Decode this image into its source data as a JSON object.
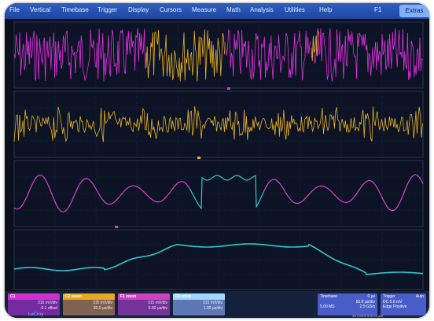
{
  "menu": {
    "items": [
      "File",
      "Vertical",
      "Timebase",
      "Trigger",
      "Display",
      "Cursors",
      "Measure",
      "Math",
      "Analysis",
      "Utilities",
      "Help"
    ],
    "channel_indicator": "F1",
    "extras": "Extras"
  },
  "colors": {
    "ch1": "#e030e0",
    "ch2": "#e8b020",
    "ch3": "#e040d0",
    "ch4": "#30c8d0",
    "grid": "#2a3450",
    "background": "#0a101c"
  },
  "traces": [
    {
      "name": "C1",
      "color": "#e030e0"
    },
    {
      "name": "C2",
      "color": "#e8b020"
    },
    {
      "name": "F1",
      "color": "#e040d0"
    },
    {
      "name": "F2",
      "color": "#30c8d0"
    }
  ],
  "descriptors": [
    {
      "label": "C1",
      "extra": "",
      "line1": "315 mV/div",
      "line2": "-0.1 offset",
      "color": "#d030d0"
    },
    {
      "label": "C2",
      "extra": "zoom",
      "line1": "315 mV/div",
      "line2": "20.0 µs/div",
      "color": "#e8a820"
    },
    {
      "label": "F1",
      "extra": "zoom",
      "line1": "315 mV/div",
      "line2": "5.00 µs/div",
      "color": "#d040c0"
    },
    {
      "label": "F2",
      "extra": "zoom",
      "line1": "315 mV/div",
      "line2": "1.00 µs/div",
      "color": "#9fd8ff"
    }
  ],
  "timebase": {
    "title": "Timebase",
    "value": "0 µs",
    "line1": "50.0 µs/div",
    "line2a": "5.00 MS",
    "line2b": "2.5 GS/s"
  },
  "trigger": {
    "title": "Trigger",
    "mode": "Auto",
    "line1": "DC 0.0 mV",
    "line2": "Edge Positive"
  },
  "stamp": "3/17/2009 9:30:10 AM",
  "brand": "LeCroy"
}
